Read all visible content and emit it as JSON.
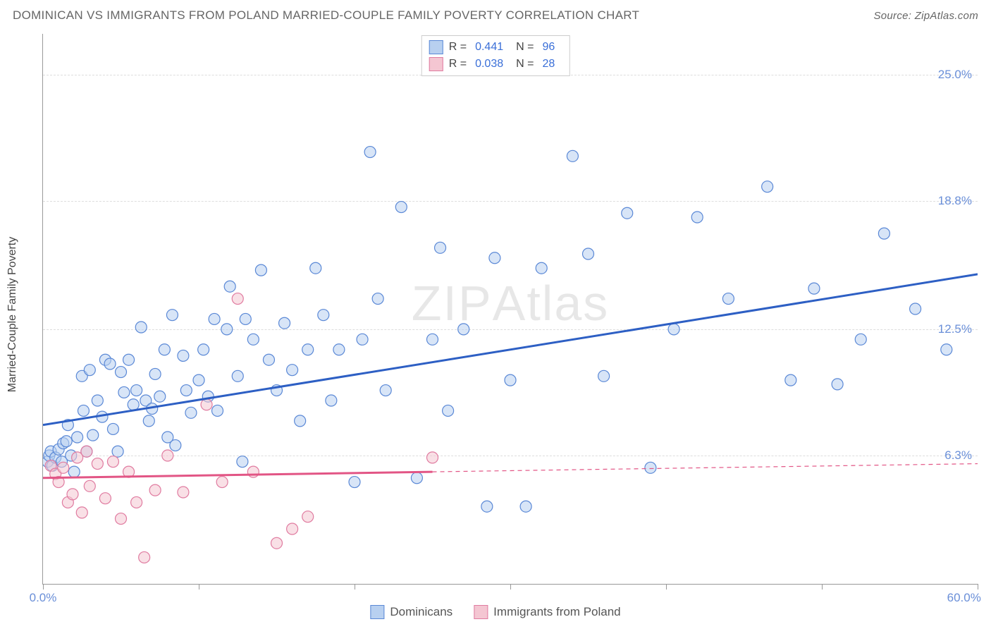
{
  "title": "DOMINICAN VS IMMIGRANTS FROM POLAND MARRIED-COUPLE FAMILY POVERTY CORRELATION CHART",
  "source_label": "Source: ZipAtlas.com",
  "y_axis_label": "Married-Couple Family Poverty",
  "watermark_a": "ZIP",
  "watermark_b": "Atlas",
  "chart": {
    "type": "scatter",
    "background_color": "#ffffff",
    "grid_color": "#dddddd",
    "axis_color": "#999999",
    "xlim": [
      0,
      60
    ],
    "ylim": [
      0,
      27
    ],
    "x_start_label": "0.0%",
    "x_end_label": "60.0%",
    "x_ticks": [
      0,
      10,
      20,
      30,
      40,
      50,
      60
    ],
    "y_ticks": [
      {
        "v": 6.3,
        "label": "6.3%"
      },
      {
        "v": 12.5,
        "label": "12.5%"
      },
      {
        "v": 18.8,
        "label": "18.8%"
      },
      {
        "v": 25.0,
        "label": "25.0%"
      }
    ],
    "marker_radius": 8,
    "marker_fill_opacity": 0.55,
    "trend_line_width": 3,
    "series": [
      {
        "id": "dominicans",
        "label": "Dominicans",
        "fill": "#b8d0f0",
        "stroke": "#5a88d6",
        "trend_color": "#2d5fc4",
        "r_value": "0.441",
        "n_value": "96",
        "trend": {
          "x1": 0,
          "y1": 7.8,
          "x2": 60,
          "y2": 15.2
        },
        "points": [
          [
            0.3,
            6.0
          ],
          [
            0.4,
            6.3
          ],
          [
            0.5,
            6.5
          ],
          [
            0.6,
            5.8
          ],
          [
            0.8,
            6.2
          ],
          [
            1.0,
            6.6
          ],
          [
            1.2,
            6.0
          ],
          [
            1.3,
            6.9
          ],
          [
            1.5,
            7.0
          ],
          [
            1.6,
            7.8
          ],
          [
            1.8,
            6.3
          ],
          [
            2.0,
            5.5
          ],
          [
            2.2,
            7.2
          ],
          [
            2.5,
            10.2
          ],
          [
            2.6,
            8.5
          ],
          [
            2.8,
            6.5
          ],
          [
            3.0,
            10.5
          ],
          [
            3.2,
            7.3
          ],
          [
            3.5,
            9.0
          ],
          [
            3.8,
            8.2
          ],
          [
            4.0,
            11.0
          ],
          [
            4.3,
            10.8
          ],
          [
            4.5,
            7.6
          ],
          [
            4.8,
            6.5
          ],
          [
            5.0,
            10.4
          ],
          [
            5.2,
            9.4
          ],
          [
            5.5,
            11.0
          ],
          [
            5.8,
            8.8
          ],
          [
            6.0,
            9.5
          ],
          [
            6.3,
            12.6
          ],
          [
            6.6,
            9.0
          ],
          [
            6.8,
            8.0
          ],
          [
            7.0,
            8.6
          ],
          [
            7.2,
            10.3
          ],
          [
            7.5,
            9.2
          ],
          [
            7.8,
            11.5
          ],
          [
            8.0,
            7.2
          ],
          [
            8.3,
            13.2
          ],
          [
            8.5,
            6.8
          ],
          [
            9.0,
            11.2
          ],
          [
            9.2,
            9.5
          ],
          [
            9.5,
            8.4
          ],
          [
            10.0,
            10.0
          ],
          [
            10.3,
            11.5
          ],
          [
            10.6,
            9.2
          ],
          [
            11.0,
            13.0
          ],
          [
            11.2,
            8.5
          ],
          [
            11.8,
            12.5
          ],
          [
            12.0,
            14.6
          ],
          [
            12.5,
            10.2
          ],
          [
            12.8,
            6.0
          ],
          [
            13.0,
            13.0
          ],
          [
            13.5,
            12.0
          ],
          [
            14.0,
            15.4
          ],
          [
            14.5,
            11.0
          ],
          [
            15.0,
            9.5
          ],
          [
            15.5,
            12.8
          ],
          [
            16.0,
            10.5
          ],
          [
            16.5,
            8.0
          ],
          [
            17.0,
            11.5
          ],
          [
            17.5,
            15.5
          ],
          [
            18.0,
            13.2
          ],
          [
            18.5,
            9.0
          ],
          [
            19.0,
            11.5
          ],
          [
            20.0,
            5.0
          ],
          [
            20.5,
            12.0
          ],
          [
            21.0,
            21.2
          ],
          [
            21.5,
            14.0
          ],
          [
            22.0,
            9.5
          ],
          [
            23.0,
            18.5
          ],
          [
            24.0,
            5.2
          ],
          [
            25.0,
            12.0
          ],
          [
            25.5,
            16.5
          ],
          [
            26.0,
            8.5
          ],
          [
            27.0,
            12.5
          ],
          [
            28.5,
            3.8
          ],
          [
            29.0,
            16.0
          ],
          [
            30.0,
            10.0
          ],
          [
            31.0,
            3.8
          ],
          [
            32.0,
            15.5
          ],
          [
            34.0,
            21.0
          ],
          [
            35.0,
            16.2
          ],
          [
            36.0,
            10.2
          ],
          [
            37.5,
            18.2
          ],
          [
            39.0,
            5.7
          ],
          [
            40.5,
            12.5
          ],
          [
            42.0,
            18.0
          ],
          [
            44.0,
            14.0
          ],
          [
            46.5,
            19.5
          ],
          [
            48.0,
            10.0
          ],
          [
            49.5,
            14.5
          ],
          [
            51.0,
            9.8
          ],
          [
            52.5,
            12.0
          ],
          [
            54.0,
            17.2
          ],
          [
            56.0,
            13.5
          ],
          [
            58.0,
            11.5
          ]
        ]
      },
      {
        "id": "poland",
        "label": "Immigrants from Poland",
        "fill": "#f4c6d2",
        "stroke": "#e07ba0",
        "trend_color": "#e25585",
        "r_value": "0.038",
        "n_value": "28",
        "trend": {
          "x1": 0,
          "y1": 5.2,
          "x2": 25,
          "y2": 5.5
        },
        "trend_ext": {
          "x1": 25,
          "y1": 5.5,
          "x2": 60,
          "y2": 5.9
        },
        "points": [
          [
            0.5,
            5.8
          ],
          [
            0.8,
            5.4
          ],
          [
            1.0,
            5.0
          ],
          [
            1.3,
            5.7
          ],
          [
            1.6,
            4.0
          ],
          [
            1.9,
            4.4
          ],
          [
            2.2,
            6.2
          ],
          [
            2.5,
            3.5
          ],
          [
            2.8,
            6.5
          ],
          [
            3.0,
            4.8
          ],
          [
            3.5,
            5.9
          ],
          [
            4.0,
            4.2
          ],
          [
            4.5,
            6.0
          ],
          [
            5.0,
            3.2
          ],
          [
            5.5,
            5.5
          ],
          [
            6.0,
            4.0
          ],
          [
            6.5,
            1.3
          ],
          [
            7.2,
            4.6
          ],
          [
            8.0,
            6.3
          ],
          [
            9.0,
            4.5
          ],
          [
            10.5,
            8.8
          ],
          [
            11.5,
            5.0
          ],
          [
            12.5,
            14.0
          ],
          [
            13.5,
            5.5
          ],
          [
            15.0,
            2.0
          ],
          [
            16.0,
            2.7
          ],
          [
            17.0,
            3.3
          ],
          [
            25.0,
            6.2
          ]
        ]
      }
    ],
    "legend_top": {
      "r_label": "R  =",
      "n_label": "N  ="
    }
  }
}
